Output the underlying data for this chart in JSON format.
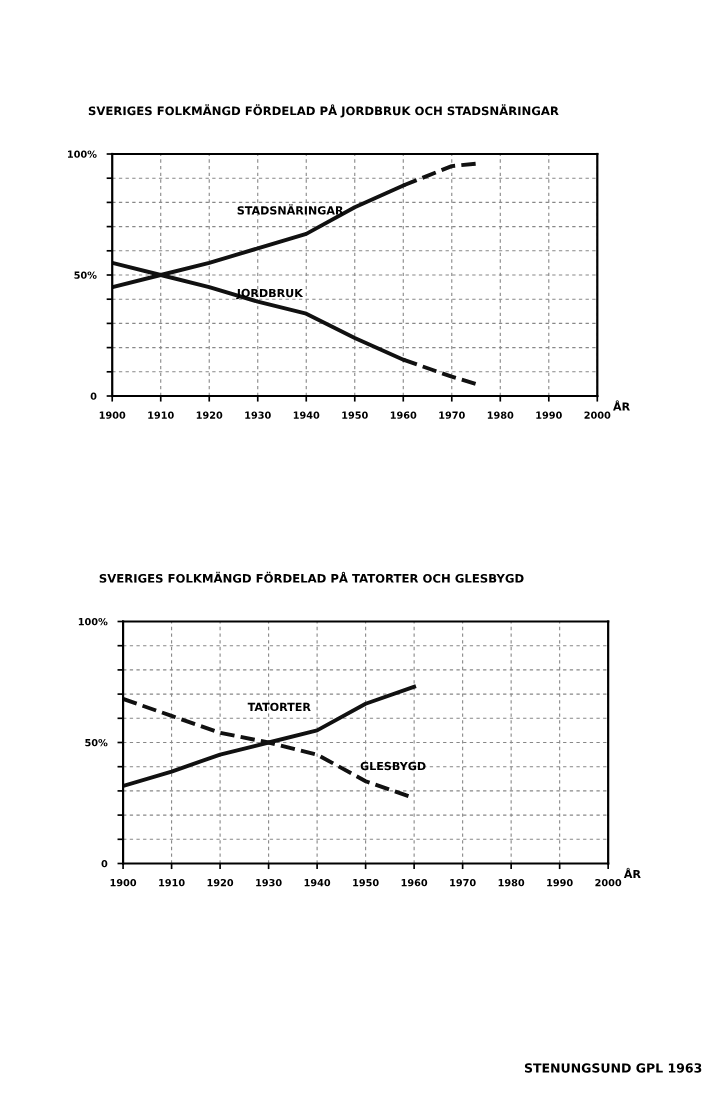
{
  "chart_data": [
    {
      "type": "line",
      "title": "SVERIGES FOLKMÄNGD FÖRDELAD PÅ JORDBRUK OCH STADSNÄRINGAR",
      "xlabel": "ÅR",
      "series": [
        {
          "name": "STADSNÄRINGAR",
          "color": "#111111",
          "line_style": "solid",
          "x": [
            1900,
            1910,
            1920,
            1930,
            1940,
            1950,
            1960
          ],
          "values": [
            45,
            50,
            55,
            61,
            67,
            78,
            87
          ]
        },
        {
          "color": "#111111",
          "line_style": "dashed",
          "x": [
            1960,
            1970,
            1975
          ],
          "values": [
            87,
            95,
            96
          ]
        },
        {
          "name": "JORDBRUK",
          "color": "#111111",
          "line_style": "solid",
          "x": [
            1900,
            1910,
            1920,
            1930,
            1940,
            1950,
            1960
          ],
          "values": [
            55,
            50,
            45,
            39,
            34,
            24,
            15
          ]
        },
        {
          "color": "#111111",
          "line_style": "dashed",
          "x": [
            1960,
            1970,
            1975
          ],
          "values": [
            15,
            8,
            5
          ]
        }
      ],
      "xlim": [
        1900,
        2000
      ],
      "xticks": [
        1900,
        1910,
        1920,
        1930,
        1940,
        1950,
        1960,
        1970,
        1980,
        1990,
        2000
      ],
      "ylim": [
        0,
        100
      ],
      "yticks": [
        0,
        {
          "value": 10,
          "label": null
        },
        {
          "value": 20,
          "label": null
        },
        {
          "value": 30,
          "label": null
        },
        {
          "value": 40,
          "label": null
        },
        {
          "value": 50,
          "label": "50%"
        },
        {
          "value": 60,
          "label": null
        },
        {
          "value": 70,
          "label": null
        },
        {
          "value": 80,
          "label": null
        },
        {
          "value": 90,
          "label": null
        },
        {
          "value": 100,
          "label": "100%"
        }
      ],
      "grid": true,
      "legend": false
    },
    {
      "type": "line",
      "title": "SVERIGES FOLKMÄNGD FÖRDELAD PÅ TATORTER OCH GLESBYGD",
      "xlabel": "ÅR",
      "series": [
        {
          "name": "TATORTER",
          "color": "#111111",
          "line_style": "solid",
          "x": [
            1900,
            1910,
            1920,
            1930,
            1940,
            1950,
            1960
          ],
          "values": [
            32,
            38,
            45,
            50,
            55,
            66,
            73
          ]
        },
        {
          "name": "GLESBYGD",
          "color": "#111111",
          "line_style": "dashed",
          "x": [
            1900,
            1910,
            1920,
            1930,
            1940,
            1950,
            1960
          ],
          "values": [
            68,
            61,
            54,
            50,
            45,
            34,
            27
          ]
        }
      ],
      "xlim": [
        1900,
        2000
      ],
      "xticks": [
        1900,
        1910,
        1920,
        1930,
        1940,
        1950,
        1960,
        1970,
        1980,
        1990,
        2000
      ],
      "ylim": [
        0,
        100
      ],
      "yticks": [
        0,
        {
          "value": 10,
          "label": null
        },
        {
          "value": 20,
          "label": null
        },
        {
          "value": 30,
          "label": null
        },
        {
          "value": 40,
          "label": null
        },
        {
          "value": 50,
          "label": "50%"
        },
        {
          "value": 60,
          "label": null
        },
        {
          "value": 70,
          "label": null
        },
        {
          "value": 80,
          "label": null
        },
        {
          "value": 90,
          "label": null
        },
        {
          "value": 100,
          "label": "100%"
        }
      ],
      "grid": true,
      "legend": false,
      "annotations": [
        "STENUNGSUND GPL 1963"
      ]
    }
  ]
}
